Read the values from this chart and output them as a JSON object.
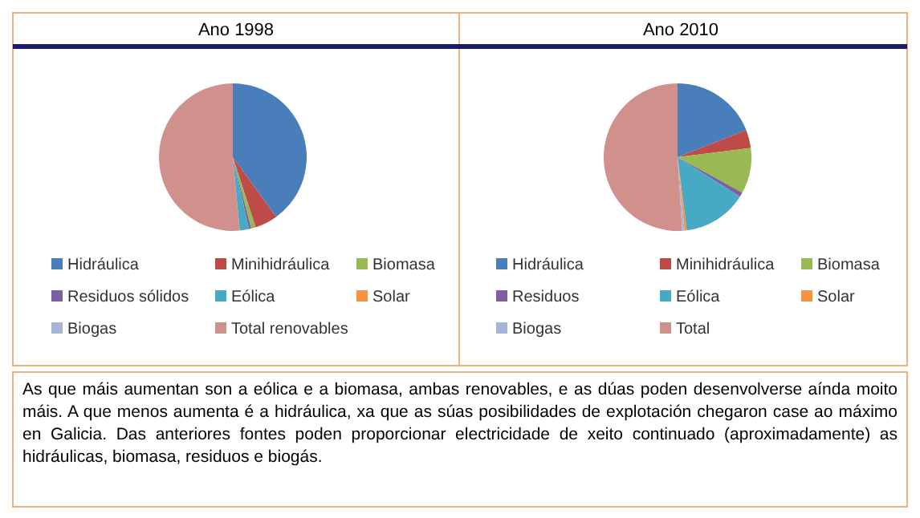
{
  "chart_data": [
    {
      "type": "pie",
      "title": "Ano 1998",
      "categories": [
        "Hidráulica",
        "Minihidráulica",
        "Biomasa",
        "Residuos sólidos",
        "Eólica",
        "Solar",
        "Biogas",
        "Total renovables"
      ],
      "values": [
        40,
        5,
        1,
        0.5,
        2,
        0,
        0,
        51.5
      ],
      "colors": [
        "#4a7ebb",
        "#be4b48",
        "#98b954",
        "#7d60a0",
        "#46aac5",
        "#f69240",
        "#a5b6d9",
        "#d0918c"
      ],
      "legend": "bottom"
    },
    {
      "type": "pie",
      "title": "Ano 2010",
      "categories": [
        "Hidráulica",
        "Minihidráulica",
        "Biomasa",
        "Residuos",
        "Eólica",
        "Solar",
        "Biogas",
        "Total"
      ],
      "values": [
        19,
        4,
        10,
        1,
        14,
        0.5,
        0.5,
        51
      ],
      "colors": [
        "#4a7ebb",
        "#be4b48",
        "#98b954",
        "#7d60a0",
        "#46aac5",
        "#f69240",
        "#a5b6d9",
        "#d0918c"
      ],
      "legend": "bottom"
    },
    {
      "type": "other",
      "annotations": [
        "As que máis aumentan son a eólica e a biomasa, ambas renovables, e as dúas poden desenvolverse aínda moito máis. A que menos aumenta é a hidráulica, xa que as súas posibilidades de explotación chegaron case ao máximo en Galicia. Das anteriores fontes poden proporcionar electricidade de xeito continuado (aproximadamente) as hidráulicas, biomasa, residuos e biogás."
      ]
    }
  ]
}
